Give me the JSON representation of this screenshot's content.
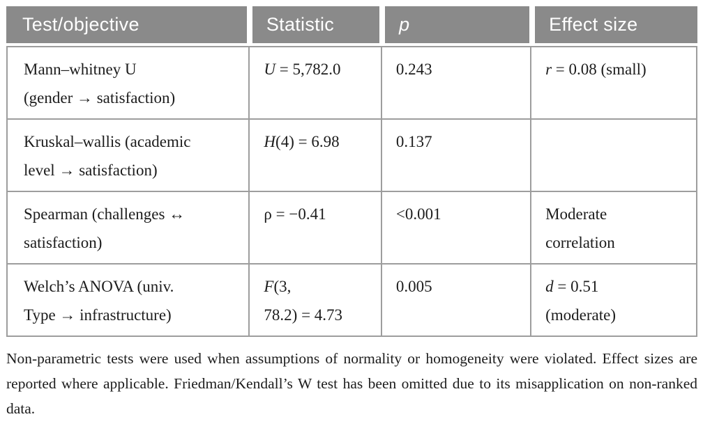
{
  "header": {
    "columns": [
      "Test/objective",
      "Statistic",
      "p",
      "Effect size"
    ]
  },
  "rows": [
    {
      "test": "Mann–whitney U\n(gender → satisfaction)",
      "stat_sym": "U",
      "stat_rest": " = 5,782.0",
      "p": "0.243",
      "effect_sym": "r",
      "effect_rest": " = 0.08 (small)"
    },
    {
      "test": "Kruskal–wallis (academic\nlevel → satisfaction)",
      "stat_sym": "H",
      "stat_rest": "(4) = 6.98",
      "p": "0.137",
      "effect_sym": "",
      "effect_rest": ""
    },
    {
      "test": "Spearman (challenges ↔\nsatisfaction)",
      "stat_sym": "",
      "stat_rest": "ρ = −0.41",
      "p": "<0.001",
      "effect_sym": "",
      "effect_rest": "Moderate\ncorrelation"
    },
    {
      "test": "Welch’s ANOVA (univ.\nType → infrastructure)",
      "stat_sym": "F",
      "stat_rest": "(3,\n78.2) = 4.73",
      "p": "0.005",
      "effect_sym": "d",
      "effect_rest": " = 0.51\n(moderate)"
    }
  ],
  "footnote": "Non-parametric tests were used when assumptions of normality or homogeneity were violated. Effect sizes are reported where applicable. Friedman/Kendall’s W test has been omitted due to its misapplication on non-ranked data.",
  "colors": {
    "header_bg": "#8a8a8a",
    "header_text": "#ffffff",
    "border": "#9d9d9d",
    "body_text": "#1c1c1c"
  }
}
